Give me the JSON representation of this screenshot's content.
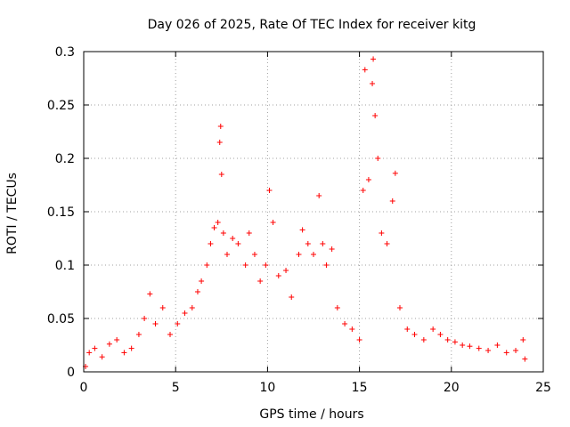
{
  "chart_data": {
    "type": "scatter",
    "title": "Day 026 of 2025, Rate Of TEC Index for receiver kitg",
    "xlabel": "GPS time / hours",
    "ylabel": "ROTI / TECUs",
    "xlim": [
      0,
      25
    ],
    "ylim": [
      0,
      0.3
    ],
    "grid": true,
    "marker": "+",
    "color": "#ff0000",
    "x_ticks": [
      "0",
      "5",
      "10",
      "15",
      "20",
      "25"
    ],
    "y_ticks": [
      "0",
      "0.05",
      "0.1",
      "0.15",
      "0.2",
      "0.25",
      "0.3"
    ],
    "series": [
      {
        "name": "ROTI",
        "points": [
          [
            0.1,
            0.005
          ],
          [
            0.3,
            0.018
          ],
          [
            0.6,
            0.022
          ],
          [
            1.0,
            0.014
          ],
          [
            1.4,
            0.026
          ],
          [
            1.8,
            0.03
          ],
          [
            2.2,
            0.018
          ],
          [
            2.6,
            0.022
          ],
          [
            3.0,
            0.035
          ],
          [
            3.3,
            0.05
          ],
          [
            3.6,
            0.073
          ],
          [
            3.9,
            0.045
          ],
          [
            4.3,
            0.06
          ],
          [
            4.7,
            0.035
          ],
          [
            5.1,
            0.045
          ],
          [
            5.5,
            0.055
          ],
          [
            5.9,
            0.06
          ],
          [
            6.2,
            0.075
          ],
          [
            6.4,
            0.085
          ],
          [
            6.7,
            0.1
          ],
          [
            6.9,
            0.12
          ],
          [
            7.1,
            0.135
          ],
          [
            7.3,
            0.14
          ],
          [
            7.4,
            0.215
          ],
          [
            7.45,
            0.23
          ],
          [
            7.5,
            0.185
          ],
          [
            7.6,
            0.13
          ],
          [
            7.8,
            0.11
          ],
          [
            8.1,
            0.125
          ],
          [
            8.4,
            0.12
          ],
          [
            8.8,
            0.1
          ],
          [
            9.0,
            0.13
          ],
          [
            9.3,
            0.11
          ],
          [
            9.6,
            0.085
          ],
          [
            9.9,
            0.1
          ],
          [
            10.1,
            0.17
          ],
          [
            10.3,
            0.14
          ],
          [
            10.6,
            0.09
          ],
          [
            11.0,
            0.095
          ],
          [
            11.3,
            0.07
          ],
          [
            11.7,
            0.11
          ],
          [
            11.9,
            0.133
          ],
          [
            12.2,
            0.12
          ],
          [
            12.5,
            0.11
          ],
          [
            12.8,
            0.165
          ],
          [
            13.0,
            0.12
          ],
          [
            13.2,
            0.1
          ],
          [
            13.5,
            0.115
          ],
          [
            13.8,
            0.06
          ],
          [
            14.2,
            0.045
          ],
          [
            14.6,
            0.04
          ],
          [
            15.0,
            0.03
          ],
          [
            15.2,
            0.17
          ],
          [
            15.3,
            0.283
          ],
          [
            15.5,
            0.18
          ],
          [
            15.7,
            0.27
          ],
          [
            15.75,
            0.293
          ],
          [
            15.85,
            0.24
          ],
          [
            16.0,
            0.2
          ],
          [
            16.2,
            0.13
          ],
          [
            16.5,
            0.12
          ],
          [
            16.8,
            0.16
          ],
          [
            16.95,
            0.186
          ],
          [
            17.2,
            0.06
          ],
          [
            17.6,
            0.04
          ],
          [
            18.0,
            0.035
          ],
          [
            18.5,
            0.03
          ],
          [
            19.0,
            0.04
          ],
          [
            19.4,
            0.035
          ],
          [
            19.8,
            0.03
          ],
          [
            20.2,
            0.028
          ],
          [
            20.6,
            0.025
          ],
          [
            21.0,
            0.024
          ],
          [
            21.5,
            0.022
          ],
          [
            22.0,
            0.02
          ],
          [
            22.5,
            0.025
          ],
          [
            23.0,
            0.018
          ],
          [
            23.5,
            0.02
          ],
          [
            23.9,
            0.03
          ],
          [
            24.0,
            0.012
          ]
        ]
      }
    ]
  }
}
